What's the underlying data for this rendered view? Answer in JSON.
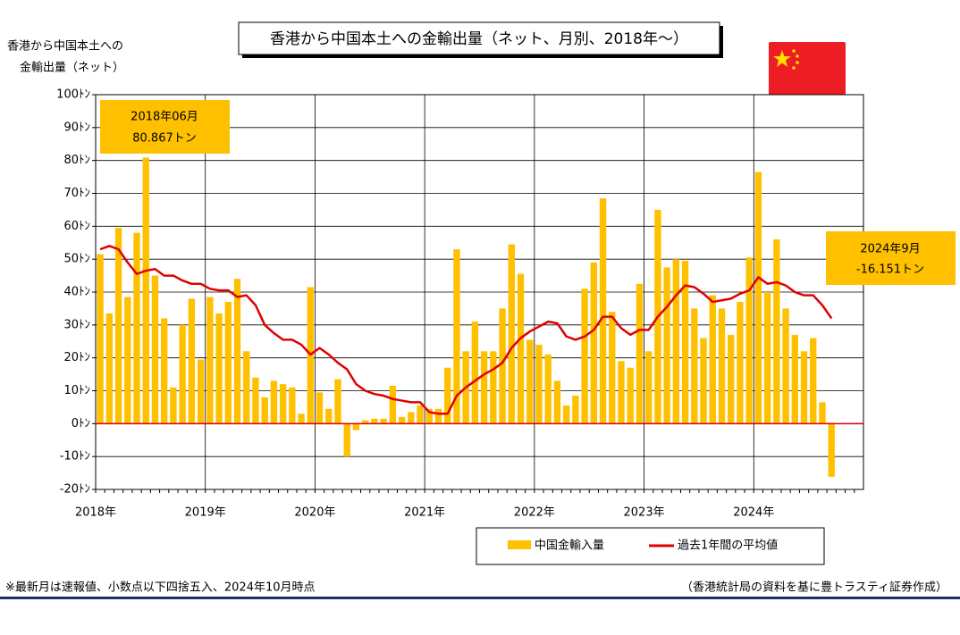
{
  "chart_data": {
    "type": "bar",
    "title": "香港から中国本土への金輸出量（ネット、月別、2018年～）",
    "y_label": [
      "香港から中国本土への",
      "金輸出量（ネット）"
    ],
    "categories": [
      "2018年",
      null,
      null,
      null,
      null,
      null,
      null,
      null,
      null,
      null,
      null,
      null,
      "2019年",
      null,
      null,
      null,
      null,
      null,
      null,
      null,
      null,
      null,
      null,
      null,
      "2020年",
      null,
      null,
      null,
      null,
      null,
      null,
      null,
      null,
      null,
      null,
      null,
      "2021年",
      null,
      null,
      null,
      null,
      null,
      null,
      null,
      null,
      null,
      null,
      null,
      "2022年",
      null,
      null,
      null,
      null,
      null,
      null,
      null,
      null,
      null,
      null,
      null,
      "2023年",
      null,
      null,
      null,
      null,
      null,
      null,
      null,
      null,
      null,
      null,
      null,
      "2024年",
      null,
      null,
      null,
      null,
      null,
      null,
      null,
      null,
      null,
      null,
      null
    ],
    "series": [
      {
        "name": "中国金輸入量",
        "color": "#FFC000",
        "type": "bar",
        "values": [
          51.5,
          33.5,
          59.5,
          38.5,
          58,
          80.867,
          45,
          32,
          11,
          30,
          38,
          19.5,
          38.5,
          33.5,
          37,
          44,
          22,
          14,
          8,
          13,
          12,
          11,
          3,
          41.5,
          9.5,
          4.5,
          13.5,
          -10,
          -2,
          1,
          1.5,
          1.5,
          11.5,
          2,
          3.5,
          5.5,
          4.5,
          4.5,
          17,
          53,
          22,
          31,
          22,
          22,
          35,
          54.5,
          45.5,
          25.5,
          24,
          21,
          13,
          5.5,
          8.5,
          41,
          49,
          68.5,
          34,
          19,
          17,
          42.5,
          22,
          65,
          47.5,
          50,
          49.5,
          35,
          26,
          39,
          35,
          27,
          37,
          50.5,
          76.5,
          40,
          56,
          35,
          27,
          22,
          26,
          6.5,
          -16.151,
          null,
          null,
          null
        ]
      },
      {
        "name": "過去1年間の平均値",
        "color": "#E00000",
        "type": "line",
        "values": [
          53,
          54,
          53,
          49,
          45.5,
          46.5,
          47,
          45,
          45,
          43.5,
          42.5,
          42.5,
          41,
          40.5,
          40.5,
          38.5,
          39,
          36,
          30,
          27.5,
          25.5,
          25.5,
          24,
          21,
          23,
          21,
          18.5,
          16.5,
          12,
          10,
          9,
          8.5,
          7.5,
          7,
          6.5,
          6.5,
          3.5,
          3,
          3,
          8.5,
          11,
          13,
          15,
          16.5,
          18.5,
          23,
          26,
          28,
          29.5,
          31,
          30.5,
          26.5,
          25.5,
          26.5,
          28.5,
          32.5,
          32.5,
          29,
          27,
          28.5,
          28.5,
          32.5,
          35.5,
          39,
          42,
          41.5,
          39.5,
          37,
          37.5,
          38,
          39.5,
          40.5,
          44.5,
          42.5,
          43,
          42,
          40,
          39,
          39,
          36,
          32,
          null,
          null,
          null
        ]
      }
    ],
    "ylim": [
      -20,
      100
    ],
    "yticks": [
      {
        "value": -20,
        "label": "-20ﾄﾝ"
      },
      {
        "value": -10,
        "label": "-10ﾄﾝ"
      },
      {
        "value": 0,
        "label": "0ﾄﾝ"
      },
      {
        "value": 10,
        "label": "10ﾄﾝ"
      },
      {
        "value": 20,
        "label": "20ﾄﾝ"
      },
      {
        "value": 30,
        "label": "30ﾄﾝ"
      },
      {
        "value": 40,
        "label": "40ﾄﾝ"
      },
      {
        "value": 50,
        "label": "50ﾄﾝ"
      },
      {
        "value": 60,
        "label": "60ﾄﾝ"
      },
      {
        "value": 70,
        "label": "70ﾄﾝ"
      },
      {
        "value": 80,
        "label": "80ﾄﾝ"
      },
      {
        "value": 90,
        "label": "90ﾄﾝ"
      },
      {
        "value": 100,
        "label": "100ﾄﾝ"
      }
    ],
    "grid": true,
    "annotations": [
      [
        "2018年06月",
        "80.867トン"
      ],
      [
        "2024年9月",
        "-16.151トン"
      ]
    ],
    "footnote_left": "※最新月は速報値、小数点以下四捨五入、2024年10月時点",
    "footnote_right": "（香港統計局の資料を基に豊トラスティ証券作成）"
  }
}
